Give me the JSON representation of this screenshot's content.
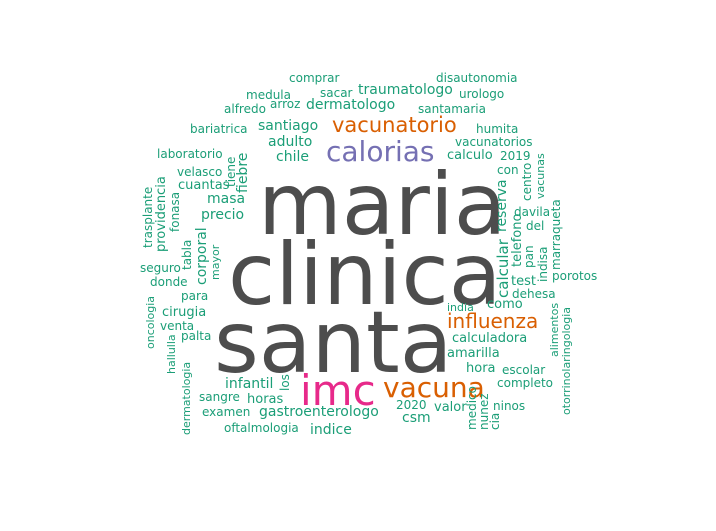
{
  "palette": {
    "gray": "#4d4d4d",
    "orange": "#d95f02",
    "purple": "#7570b3",
    "magenta": "#e7298a",
    "teal": "#1b9e77"
  },
  "words": [
    {
      "text": "maria",
      "color": "gray",
      "rotated": false
    },
    {
      "text": "clinica",
      "color": "gray",
      "rotated": false
    },
    {
      "text": "santa",
      "color": "gray",
      "rotated": false
    },
    {
      "text": "imc",
      "color": "magenta",
      "rotated": false
    },
    {
      "text": "vacuna",
      "color": "orange",
      "rotated": false
    },
    {
      "text": "calorias",
      "color": "purple",
      "rotated": false
    },
    {
      "text": "vacunatorio",
      "color": "orange",
      "rotated": false
    },
    {
      "text": "influenza",
      "color": "orange",
      "rotated": false
    },
    {
      "text": "comprar",
      "color": "teal",
      "rotated": false
    },
    {
      "text": "disautonomia",
      "color": "teal",
      "rotated": false
    },
    {
      "text": "medula",
      "color": "teal",
      "rotated": false
    },
    {
      "text": "sacar",
      "color": "teal",
      "rotated": false
    },
    {
      "text": "traumatologo",
      "color": "teal",
      "rotated": false
    },
    {
      "text": "urologo",
      "color": "teal",
      "rotated": false
    },
    {
      "text": "alfredo",
      "color": "teal",
      "rotated": false
    },
    {
      "text": "arroz",
      "color": "teal",
      "rotated": false
    },
    {
      "text": "dermatologo",
      "color": "teal",
      "rotated": false
    },
    {
      "text": "santamaria",
      "color": "teal",
      "rotated": false
    },
    {
      "text": "bariatrica",
      "color": "teal",
      "rotated": false
    },
    {
      "text": "santiago",
      "color": "teal",
      "rotated": false
    },
    {
      "text": "humita",
      "color": "teal",
      "rotated": false
    },
    {
      "text": "adulto",
      "color": "teal",
      "rotated": false
    },
    {
      "text": "vacunatorios",
      "color": "teal",
      "rotated": false
    },
    {
      "text": "laboratorio",
      "color": "teal",
      "rotated": false
    },
    {
      "text": "chile",
      "color": "teal",
      "rotated": false
    },
    {
      "text": "calculo",
      "color": "teal",
      "rotated": false
    },
    {
      "text": "2019",
      "color": "teal",
      "rotated": false
    },
    {
      "text": "velasco",
      "color": "teal",
      "rotated": false
    },
    {
      "text": "con",
      "color": "teal",
      "rotated": false
    },
    {
      "text": "cuantas",
      "color": "teal",
      "rotated": false
    },
    {
      "text": "masa",
      "color": "teal",
      "rotated": false
    },
    {
      "text": "precio",
      "color": "teal",
      "rotated": false
    },
    {
      "text": "davila",
      "color": "teal",
      "rotated": false
    },
    {
      "text": "del",
      "color": "teal",
      "rotated": false
    },
    {
      "text": "seguro",
      "color": "teal",
      "rotated": false
    },
    {
      "text": "donde",
      "color": "teal",
      "rotated": false
    },
    {
      "text": "para",
      "color": "teal",
      "rotated": false
    },
    {
      "text": "test",
      "color": "teal",
      "rotated": false
    },
    {
      "text": "porotos",
      "color": "teal",
      "rotated": false
    },
    {
      "text": "dehesa",
      "color": "teal",
      "rotated": false
    },
    {
      "text": "india",
      "color": "teal",
      "rotated": false
    },
    {
      "text": "como",
      "color": "teal",
      "rotated": false
    },
    {
      "text": "cirugia",
      "color": "teal",
      "rotated": false
    },
    {
      "text": "venta",
      "color": "teal",
      "rotated": false
    },
    {
      "text": "palta",
      "color": "teal",
      "rotated": false
    },
    {
      "text": "calculadora",
      "color": "teal",
      "rotated": false
    },
    {
      "text": "amarilla",
      "color": "teal",
      "rotated": false
    },
    {
      "text": "hora",
      "color": "teal",
      "rotated": false
    },
    {
      "text": "escolar",
      "color": "teal",
      "rotated": false
    },
    {
      "text": "completo",
      "color": "teal",
      "rotated": false
    },
    {
      "text": "infantil",
      "color": "teal",
      "rotated": false
    },
    {
      "text": "sangre",
      "color": "teal",
      "rotated": false
    },
    {
      "text": "horas",
      "color": "teal",
      "rotated": false
    },
    {
      "text": "examen",
      "color": "teal",
      "rotated": false
    },
    {
      "text": "gastroenterologo",
      "color": "teal",
      "rotated": false
    },
    {
      "text": "2020",
      "color": "teal",
      "rotated": false
    },
    {
      "text": "valor",
      "color": "teal",
      "rotated": false
    },
    {
      "text": "ninos",
      "color": "teal",
      "rotated": false
    },
    {
      "text": "csm",
      "color": "teal",
      "rotated": false
    },
    {
      "text": "oftalmologia",
      "color": "teal",
      "rotated": false
    },
    {
      "text": "indice",
      "color": "teal",
      "rotated": false
    },
    {
      "text": "tiene",
      "color": "teal",
      "rotated": true
    },
    {
      "text": "fiebre",
      "color": "teal",
      "rotated": true
    },
    {
      "text": "trasplante",
      "color": "teal",
      "rotated": true
    },
    {
      "text": "providencia",
      "color": "teal",
      "rotated": true
    },
    {
      "text": "fonasa",
      "color": "teal",
      "rotated": true
    },
    {
      "text": "tabla",
      "color": "teal",
      "rotated": true
    },
    {
      "text": "corporal",
      "color": "teal",
      "rotated": true
    },
    {
      "text": "mayor",
      "color": "teal",
      "rotated": true
    },
    {
      "text": "oncologia",
      "color": "teal",
      "rotated": true
    },
    {
      "text": "hallulla",
      "color": "teal",
      "rotated": true
    },
    {
      "text": "dermatologia",
      "color": "teal",
      "rotated": true
    },
    {
      "text": "los",
      "color": "teal",
      "rotated": true
    },
    {
      "text": "reserva",
      "color": "teal",
      "rotated": true
    },
    {
      "text": "calcular",
      "color": "teal",
      "rotated": true
    },
    {
      "text": "telefono",
      "color": "teal",
      "rotated": true
    },
    {
      "text": "pan",
      "color": "teal",
      "rotated": true
    },
    {
      "text": "centro",
      "color": "teal",
      "rotated": true
    },
    {
      "text": "vacunas",
      "color": "teal",
      "rotated": true
    },
    {
      "text": "marraqueta",
      "color": "teal",
      "rotated": true
    },
    {
      "text": "indisa",
      "color": "teal",
      "rotated": true
    },
    {
      "text": "alimentos",
      "color": "teal",
      "rotated": true
    },
    {
      "text": "otorrinolaringologia",
      "color": "teal",
      "rotated": true
    },
    {
      "text": "medico",
      "color": "teal",
      "rotated": true
    },
    {
      "text": "nunez",
      "color": "teal",
      "rotated": true
    },
    {
      "text": "cia",
      "color": "teal",
      "rotated": true
    }
  ]
}
